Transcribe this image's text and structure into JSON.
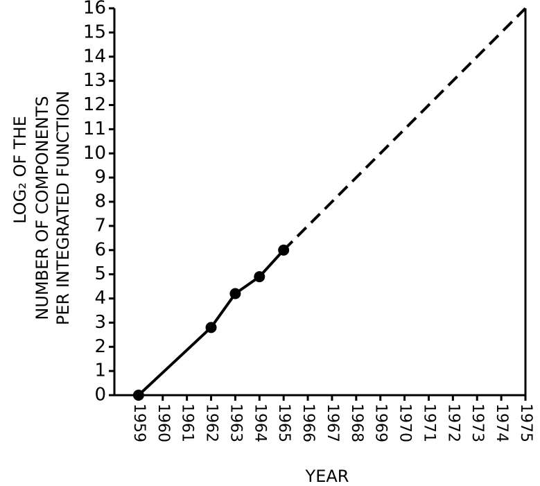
{
  "chart_data": {
    "type": "line",
    "xlabel": "YEAR",
    "ylabel": [
      "LOG₂ OF THE",
      "NUMBER OF COMPONENTS",
      "PER INTEGRATED FUNCTION"
    ],
    "series": [
      {
        "color": "#000000",
        "style": "solid",
        "markers": true,
        "x": [
          1959,
          1962,
          1963,
          1964,
          1965
        ],
        "values": [
          0,
          2.8,
          4.2,
          4.9,
          6
        ]
      },
      {
        "color": "#000000",
        "style": "dashed",
        "markers": false,
        "x": [
          1965,
          1975
        ],
        "values": [
          6,
          16
        ]
      }
    ],
    "xlim": [
      1958,
      1975
    ],
    "xticks": [
      1959,
      1960,
      1961,
      1962,
      1963,
      1964,
      1965,
      1966,
      1967,
      1968,
      1969,
      1970,
      1971,
      1972,
      1973,
      1974,
      1975
    ],
    "ylim": [
      0,
      16
    ],
    "yticks": [
      0,
      1,
      2,
      3,
      4,
      5,
      6,
      7,
      8,
      9,
      10,
      11,
      12,
      13,
      14,
      15,
      16
    ]
  }
}
